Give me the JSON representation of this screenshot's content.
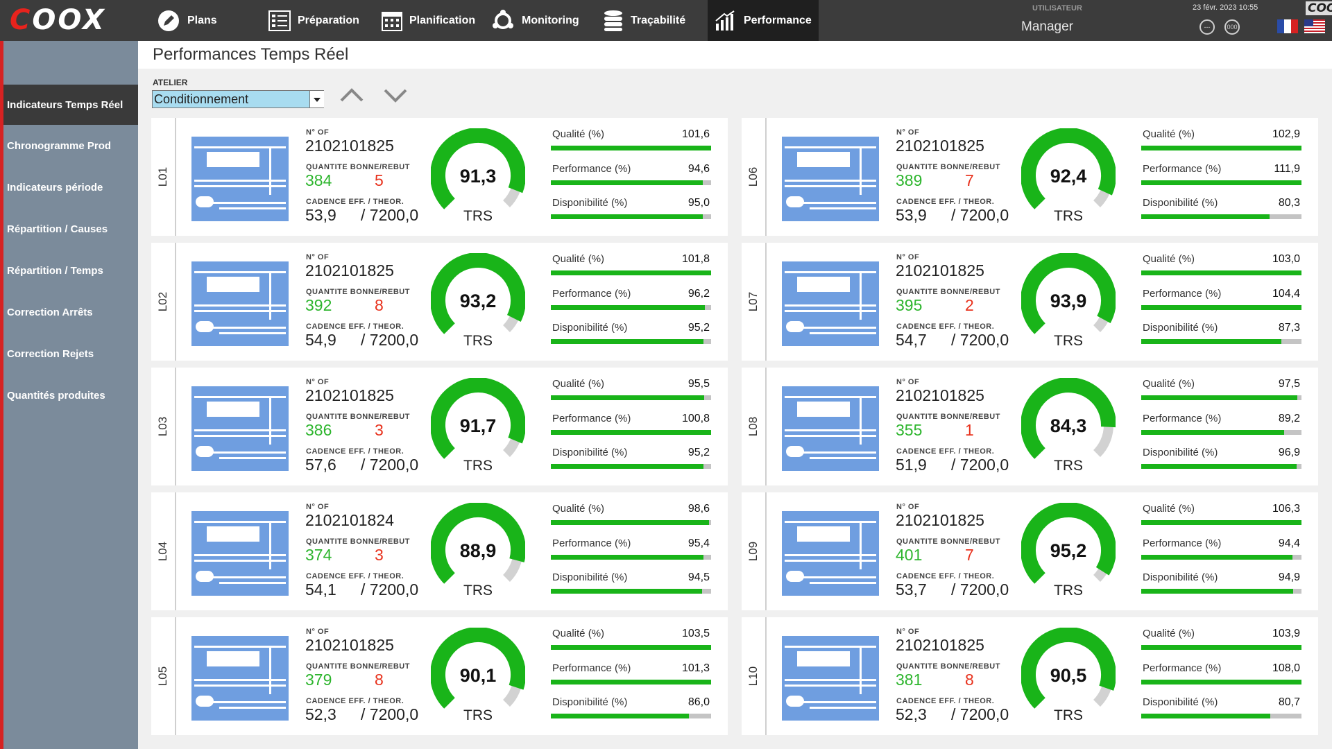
{
  "app": {
    "logo": "COOX",
    "brand_small": "COOX",
    "user_label": "UTILISATEUR",
    "user_name": "Manager",
    "datetime": "23 févr. 2023 10:55",
    "btn_left": "---",
    "btn_right": "000"
  },
  "nav": [
    {
      "label": "Plans",
      "icon": "pencil-icon"
    },
    {
      "label": "Préparation",
      "icon": "checklist-icon"
    },
    {
      "label": "Planification",
      "icon": "calendar-icon"
    },
    {
      "label": "Monitoring",
      "icon": "network-icon"
    },
    {
      "label": "Traçabilité",
      "icon": "database-icon"
    },
    {
      "label": "Performance",
      "icon": "chart-icon",
      "active": true
    }
  ],
  "sidebar": [
    {
      "label": "Indicateurs Temps Réel",
      "active": true
    },
    {
      "label": "Chronogramme Prod"
    },
    {
      "label": "Indicateurs période"
    },
    {
      "label": "Répartition / Causes"
    },
    {
      "label": "Répartition / Temps"
    },
    {
      "label": "Correction Arrêts"
    },
    {
      "label": "Correction Rejets"
    },
    {
      "label": "Quantités produites"
    }
  ],
  "page": {
    "title": "Performances Temps Réel",
    "atelier_label": "ATELIER",
    "atelier_value": "Conditionnement"
  },
  "labels": {
    "of": "N° OF",
    "qty": "QUANTITE BONNE/REBUT",
    "cadence": "CADENCE EFF. / THEOR.",
    "trs": "TRS",
    "qualite": "Qualité (%)",
    "performance": "Performance (%)",
    "disponibilite": "Disponibilité (%)"
  },
  "colors": {
    "good": "#2db52d",
    "bad": "#e8321d",
    "gauge": "#19b419",
    "machine": "#6f9ee0"
  },
  "lines": [
    {
      "name": "L01",
      "of": "2102101825",
      "good": "384",
      "bad": "5",
      "cad_eff": "53,9",
      "cad_theo": "/ 7200,0",
      "trs": "91,3",
      "trs_val": 91.3,
      "q": "101,6",
      "q_val": 101.6,
      "p": "94,6",
      "p_val": 94.6,
      "d": "95,0",
      "d_val": 95.0
    },
    {
      "name": "L02",
      "of": "2102101825",
      "good": "392",
      "bad": "8",
      "cad_eff": "54,9",
      "cad_theo": "/ 7200,0",
      "trs": "93,2",
      "trs_val": 93.2,
      "q": "101,8",
      "q_val": 101.8,
      "p": "96,2",
      "p_val": 96.2,
      "d": "95,2",
      "d_val": 95.2
    },
    {
      "name": "L03",
      "of": "2102101825",
      "good": "386",
      "bad": "3",
      "cad_eff": "57,6",
      "cad_theo": "/ 7200,0",
      "trs": "91,7",
      "trs_val": 91.7,
      "q": "95,5",
      "q_val": 95.5,
      "p": "100,8",
      "p_val": 100.8,
      "d": "95,2",
      "d_val": 95.2
    },
    {
      "name": "L04",
      "of": "2102101824",
      "good": "374",
      "bad": "3",
      "cad_eff": "54,1",
      "cad_theo": "/ 7200,0",
      "trs": "88,9",
      "trs_val": 88.9,
      "q": "98,6",
      "q_val": 98.6,
      "p": "95,4",
      "p_val": 95.4,
      "d": "94,5",
      "d_val": 94.5
    },
    {
      "name": "L05",
      "of": "2102101825",
      "good": "379",
      "bad": "8",
      "cad_eff": "52,3",
      "cad_theo": "/ 7200,0",
      "trs": "90,1",
      "trs_val": 90.1,
      "q": "103,5",
      "q_val": 103.5,
      "p": "101,3",
      "p_val": 101.3,
      "d": "86,0",
      "d_val": 86.0
    },
    {
      "name": "L06",
      "of": "2102101825",
      "good": "389",
      "bad": "7",
      "cad_eff": "53,9",
      "cad_theo": "/ 7200,0",
      "trs": "92,4",
      "trs_val": 92.4,
      "q": "102,9",
      "q_val": 102.9,
      "p": "111,9",
      "p_val": 111.9,
      "d": "80,3",
      "d_val": 80.3
    },
    {
      "name": "L07",
      "of": "2102101825",
      "good": "395",
      "bad": "2",
      "cad_eff": "54,7",
      "cad_theo": "/ 7200,0",
      "trs": "93,9",
      "trs_val": 93.9,
      "q": "103,0",
      "q_val": 103.0,
      "p": "104,4",
      "p_val": 104.4,
      "d": "87,3",
      "d_val": 87.3
    },
    {
      "name": "L08",
      "of": "2102101825",
      "good": "355",
      "bad": "1",
      "cad_eff": "51,9",
      "cad_theo": "/ 7200,0",
      "trs": "84,3",
      "trs_val": 84.3,
      "q": "97,5",
      "q_val": 97.5,
      "p": "89,2",
      "p_val": 89.2,
      "d": "96,9",
      "d_val": 96.9
    },
    {
      "name": "L09",
      "of": "2102101825",
      "good": "401",
      "bad": "7",
      "cad_eff": "53,7",
      "cad_theo": "/ 7200,0",
      "trs": "95,2",
      "trs_val": 95.2,
      "q": "106,3",
      "q_val": 106.3,
      "p": "94,4",
      "p_val": 94.4,
      "d": "94,9",
      "d_val": 94.9
    },
    {
      "name": "L10",
      "of": "2102101825",
      "good": "381",
      "bad": "8",
      "cad_eff": "52,3",
      "cad_theo": "/ 7200,0",
      "trs": "90,5",
      "trs_val": 90.5,
      "q": "103,9",
      "q_val": 103.9,
      "p": "108,0",
      "p_val": 108.0,
      "d": "80,7",
      "d_val": 80.7
    }
  ]
}
